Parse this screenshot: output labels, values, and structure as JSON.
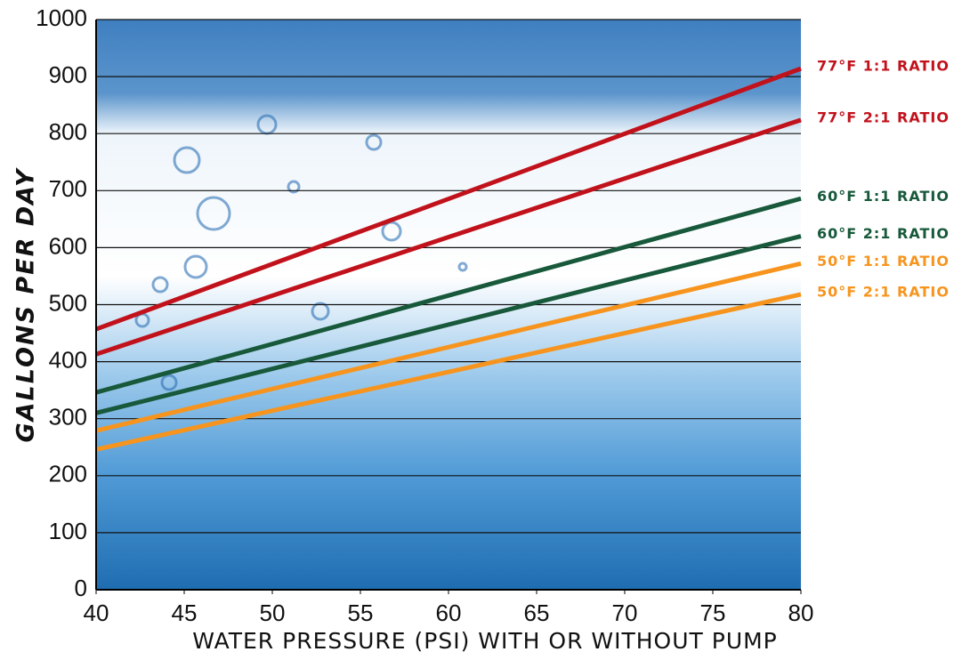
{
  "chart_data": {
    "type": "line",
    "x_label": "WATER PRESSURE (PSI) WITH OR WITHOUT PUMP",
    "y_label": "GALLONS PER DAY",
    "x": [
      40,
      80
    ],
    "series": [
      {
        "name": "77°F 1:1 RATIO",
        "color": "#c1121c",
        "values": [
          457,
          914
        ]
      },
      {
        "name": "77°F 2:1 RATIO",
        "color": "#c1121c",
        "values": [
          413,
          824
        ]
      },
      {
        "name": "60°F 1:1 RATIO",
        "color": "#17593a",
        "values": [
          346,
          686
        ]
      },
      {
        "name": "60°F 2:1 RATIO",
        "color": "#17593a",
        "values": [
          310,
          620
        ]
      },
      {
        "name": "50°F 1:1 RATIO",
        "color": "#f7941d",
        "values": [
          279,
          572
        ]
      },
      {
        "name": "50°F 2:1 RATIO",
        "color": "#f7941d",
        "values": [
          246,
          518
        ]
      }
    ],
    "xlim": [
      40,
      80
    ],
    "xticks": [
      40,
      45,
      50,
      55,
      60,
      65,
      70,
      75,
      80
    ],
    "ylim": [
      0,
      1000
    ],
    "yticks": [
      0,
      100,
      200,
      300,
      400,
      500,
      600,
      700,
      800,
      900,
      1000
    ],
    "grid": true,
    "legend": "right"
  }
}
